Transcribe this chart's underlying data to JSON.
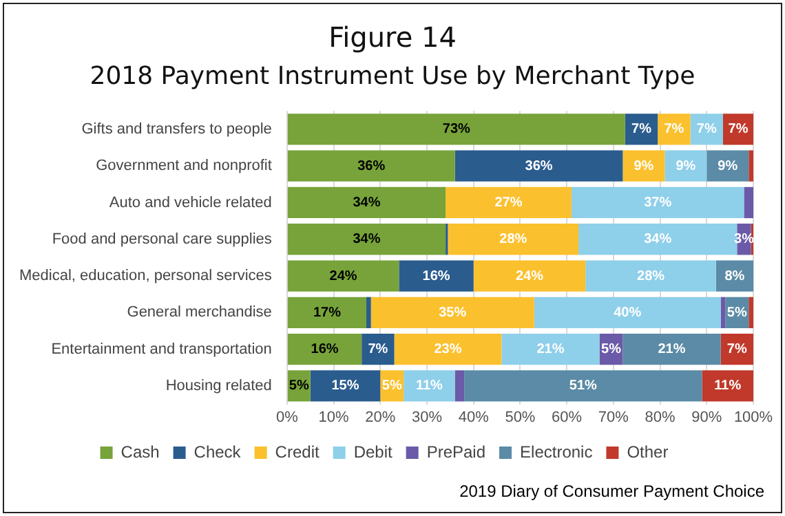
{
  "chart_data": {
    "type": "bar",
    "title": "Figure 14",
    "subtitle": "2018 Payment Instrument Use by Merchant Type",
    "orientation": "horizontal",
    "stacked": true,
    "categories": [
      "Gifts and transfers to people",
      "Government and nonprofit",
      "Auto and vehicle related",
      "Food and personal care supplies",
      "Medical, education, personal services",
      "General merchandise",
      "Entertainment and transportation",
      "Housing related"
    ],
    "series": [
      {
        "name": "Cash",
        "color": "#77a33a",
        "values": [
          72.5,
          36,
          34,
          34,
          24,
          17,
          16,
          5
        ],
        "value_labels": [
          "73%",
          "36%",
          "34%",
          "34%",
          "24%",
          "17%",
          "16%",
          "5%"
        ]
      },
      {
        "name": "Check",
        "color": "#2a5c8e",
        "values": [
          7,
          36,
          0,
          0.5,
          16,
          1,
          7,
          15
        ],
        "value_labels": [
          "7%",
          "36%",
          null,
          null,
          "16%",
          null,
          "7%",
          "15%"
        ]
      },
      {
        "name": "Credit",
        "color": "#fbc02d",
        "values": [
          7,
          9,
          27,
          28,
          24,
          35,
          23,
          5
        ],
        "value_labels": [
          "7%",
          "9%",
          "27%",
          "28%",
          "24%",
          "35%",
          "23%",
          "5%"
        ]
      },
      {
        "name": "Debit",
        "color": "#8ecfea",
        "values": [
          7,
          9,
          37,
          34,
          28,
          40,
          21,
          11
        ],
        "value_labels": [
          "7%",
          "9%",
          "37%",
          "34%",
          "28%",
          "40%",
          "21%",
          "11%"
        ]
      },
      {
        "name": "PrePaid",
        "color": "#6a5aa8",
        "values": [
          0,
          0,
          2,
          3,
          0,
          1,
          5,
          2
        ],
        "value_labels": [
          null,
          null,
          null,
          "3%",
          null,
          null,
          "5%",
          null
        ]
      },
      {
        "name": "Electronic",
        "color": "#5b8ba6",
        "values": [
          0,
          9,
          0,
          0,
          8,
          5,
          21,
          51
        ],
        "value_labels": [
          null,
          "9%",
          null,
          null,
          "8%",
          "5%",
          "21%",
          "51%"
        ]
      },
      {
        "name": "Other",
        "color": "#c0392b",
        "values": [
          6.5,
          1,
          0,
          0.5,
          0,
          1,
          7,
          11
        ],
        "value_labels": [
          "7%",
          null,
          null,
          null,
          null,
          null,
          "7%",
          "11%"
        ]
      }
    ],
    "xlim": [
      0,
      100
    ],
    "xticks": [
      {
        "value": 0,
        "label": "0%"
      },
      {
        "value": 10,
        "label": "10%"
      },
      {
        "value": 20,
        "label": "20%"
      },
      {
        "value": 30,
        "label": "30%"
      },
      {
        "value": 40,
        "label": "40%"
      },
      {
        "value": 50,
        "label": "50%"
      },
      {
        "value": 60,
        "label": "60%"
      },
      {
        "value": 70,
        "label": "70%"
      },
      {
        "value": 80,
        "label": "80%"
      },
      {
        "value": 90,
        "label": "90%"
      },
      {
        "value": 100,
        "label": "100%"
      }
    ],
    "grid": "x",
    "legend": "bottom",
    "annotations": [
      "2019 Diary of Consumer Payment Choice"
    ]
  }
}
